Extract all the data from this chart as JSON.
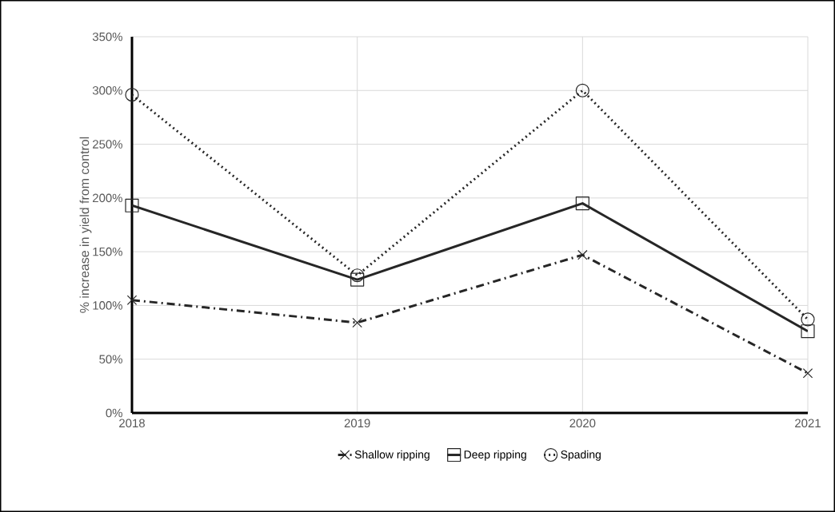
{
  "chart_data": {
    "type": "line",
    "ylabel": "% increase in yield from control",
    "categories": [
      "2018",
      "2019",
      "2020",
      "2021"
    ],
    "series": [
      {
        "name": "Shallow ripping",
        "color": "#262626",
        "marker": "cross",
        "line_style": "dashed",
        "values": [
          105,
          84,
          147,
          37
        ]
      },
      {
        "name": "Deep ripping",
        "color": "#262626",
        "marker": "square",
        "line_style": "solid",
        "values": [
          193,
          124,
          195,
          76
        ]
      },
      {
        "name": "Spading",
        "color": "#262626",
        "marker": "circle",
        "line_style": "dotted",
        "values": [
          296,
          128,
          300,
          87
        ]
      }
    ],
    "ylim": [
      0,
      350
    ],
    "yticks": [
      {
        "value": 0,
        "label": "0%"
      },
      {
        "value": 50,
        "label": "50%"
      },
      {
        "value": 100,
        "label": "100%"
      },
      {
        "value": 150,
        "label": "150%"
      },
      {
        "value": 200,
        "label": "200%"
      },
      {
        "value": 250,
        "label": "250%"
      },
      {
        "value": 300,
        "label": "300%"
      },
      {
        "value": 350,
        "label": "350%"
      }
    ],
    "grid": true,
    "legend": "bottom"
  }
}
